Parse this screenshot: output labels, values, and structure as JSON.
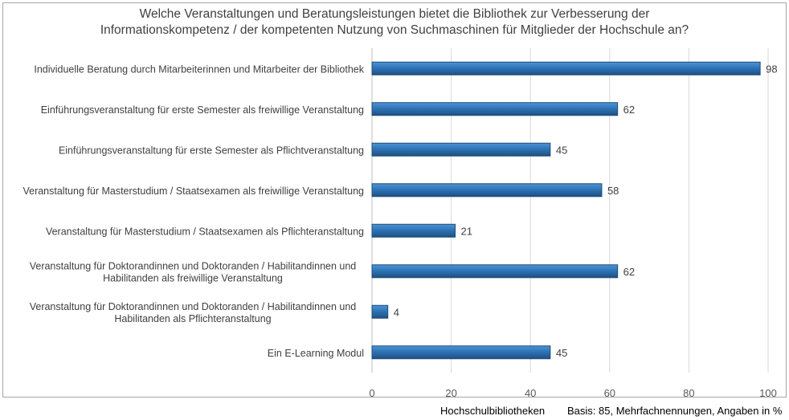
{
  "chart_data": {
    "type": "bar",
    "orientation": "horizontal",
    "title_lines": [
      "Welche Veranstaltungen und Beratungsleistungen bietet die Bibliothek zur Verbesserung der",
      "Informationskompetenz / der kompetenten Nutzung von Suchmaschinen für Mitglieder der Hochschule an?"
    ],
    "categories": [
      [
        "Individuelle Beratung durch Mitarbeiterinnen und Mitarbeiter der Bibliothek"
      ],
      [
        "Einführungsveranstaltung für erste Semester als freiwillige Veranstaltung"
      ],
      [
        "Einführungsveranstaltung für erste Semester als Pflichtveranstaltung"
      ],
      [
        "Veranstaltung für Masterstudium / Staatsexamen als freiwillige Veranstaltung"
      ],
      [
        "Veranstaltung für Masterstudium / Staatsexamen als Pflichteranstaltung"
      ],
      [
        "Veranstaltung für Doktorandinnen und Doktoranden / Habilitandinnen und",
        "Habilitanden als freiwillige Veranstaltung"
      ],
      [
        "Veranstaltung für Doktorandinnen und Doktoranden / Habilitandinnen und",
        "Habilitanden als Pflichteranstaltung"
      ],
      [
        "Ein E-Learning Modul"
      ]
    ],
    "values": [
      98,
      62,
      45,
      58,
      21,
      62,
      4,
      45
    ],
    "xlim": [
      0,
      100
    ],
    "xticks": [
      0,
      20,
      40,
      60,
      80,
      100
    ],
    "grid": true,
    "bar_color": "#2e75b6"
  },
  "footer": {
    "source": "Hochschulbibliotheken",
    "basis": "Basis: 85, Mehrfachnennungen, Angaben in %"
  }
}
